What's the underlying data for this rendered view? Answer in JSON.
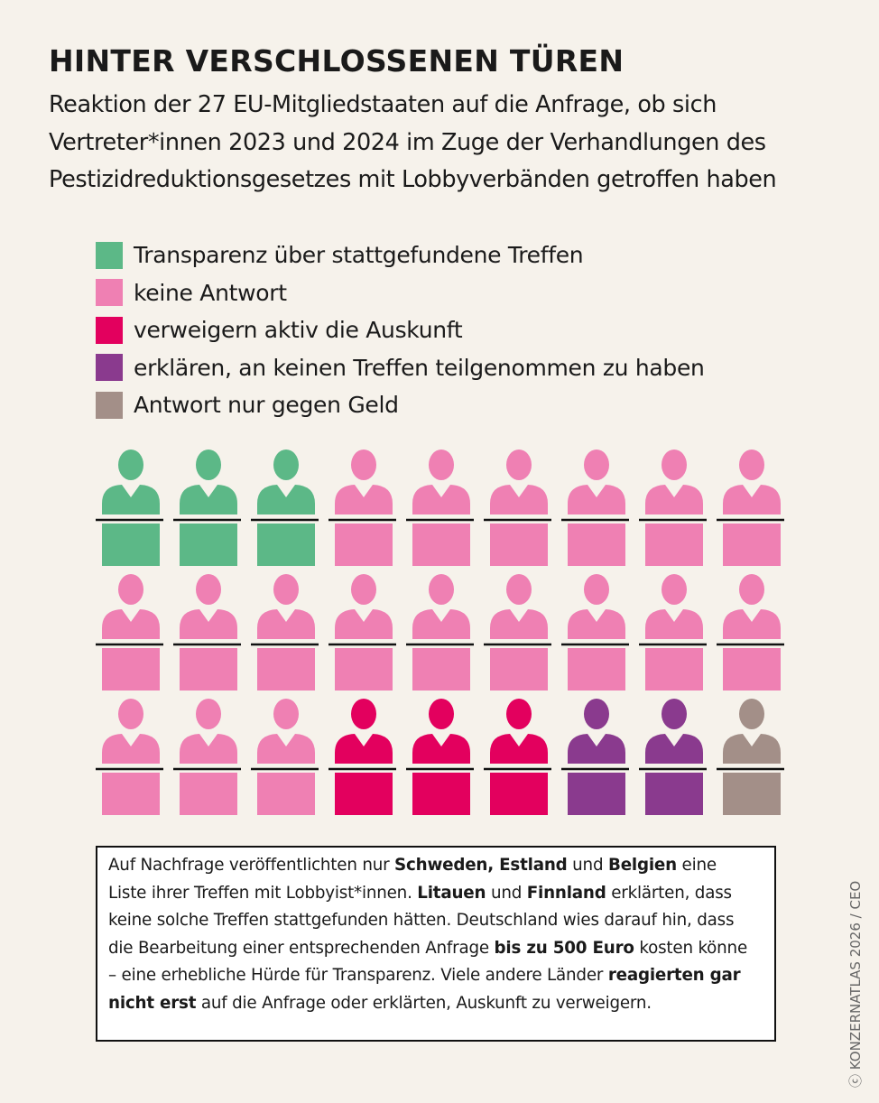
{
  "title": "HINTER VERSCHLOSSENEN TÜREN",
  "subtitle": "Reaktion der 27 EU-Mitgliedstaaten auf die Anfrage, ob sich Vertreter*innen 2023 und 2024 im Zuge der Verhandlungen des Pestizidreduktionsgesetzes mit Lobbyverbänden getroffen haben",
  "chart_data": {
    "type": "pictogram",
    "unit": "EU-Mitgliedstaat",
    "total": 27,
    "columns": 9,
    "legend_placement": "top-left",
    "categories": [
      {
        "label": "Transparenz über stattgefundene Treffen",
        "count": 3,
        "color": "#5cb887"
      },
      {
        "label": "keine Antwort",
        "count": 18,
        "color": "#ef80b3"
      },
      {
        "label": "verweigern aktiv die Auskunft",
        "count": 3,
        "color": "#e3005e"
      },
      {
        "label": "erklären, an keinen Treffen teilgenommen zu haben",
        "count": 2,
        "color": "#8a3a8e"
      },
      {
        "label": "Antwort nur gegen Geld",
        "count": 1,
        "color": "#a38f88"
      }
    ]
  },
  "note": [
    {
      "t": "Auf Nachfrage veröffentlichten nur "
    },
    {
      "t": "Schweden, Estland",
      "b": true
    },
    {
      "t": " und "
    },
    {
      "t": "Belgien",
      "b": true
    },
    {
      "t": " eine Liste ihrer Treffen mit Lobbyist*innen. "
    },
    {
      "t": "Litauen",
      "b": true
    },
    {
      "t": " und "
    },
    {
      "t": "Finnland",
      "b": true
    },
    {
      "t": " erklär­ten, dass keine solche Treffen stattgefunden hätten. Deutschland wies darauf hin, dass die Bearbeitung einer entsprechenden Anfrage "
    },
    {
      "t": "bis zu 500 Euro",
      "b": true
    },
    {
      "t": " kosten könne – eine erhebliche Hürde für Transparenz. Viele andere Länder "
    },
    {
      "t": "reagierten gar nicht erst",
      "b": true
    },
    {
      "t": " auf die Anfrage oder erklärten, Auskunft zu verweigern."
    }
  ],
  "credit": "ⓒ KONZERNATLAS 2026 / CEO"
}
